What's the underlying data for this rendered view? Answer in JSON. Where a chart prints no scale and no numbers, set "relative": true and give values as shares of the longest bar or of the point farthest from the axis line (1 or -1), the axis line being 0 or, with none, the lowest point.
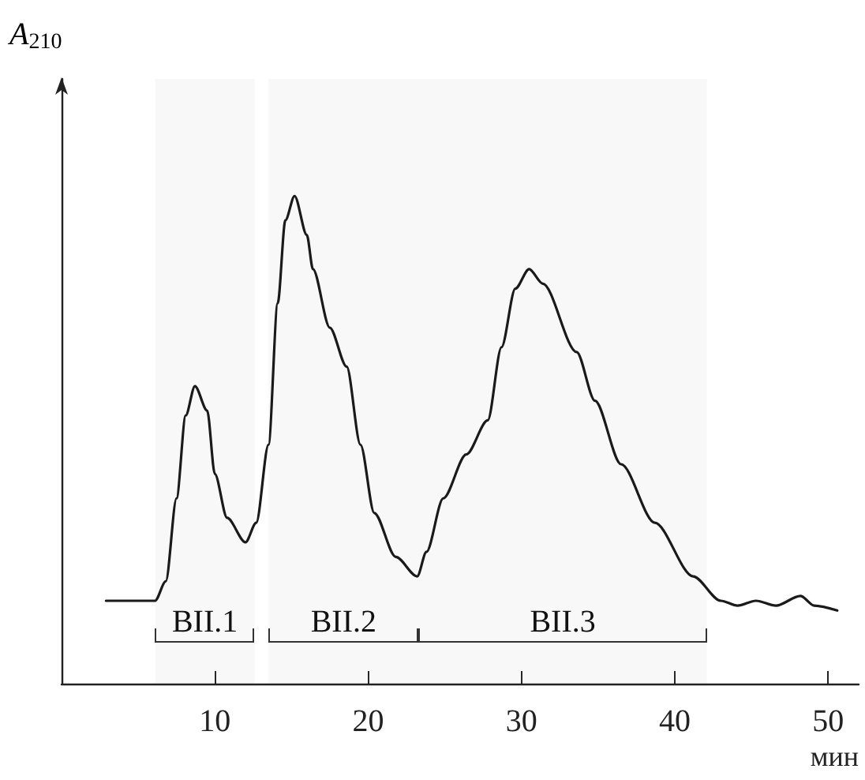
{
  "chart_data": {
    "type": "line",
    "relative": true,
    "ylabel": "A$_{210}$",
    "xlabel": "мин",
    "xlim": [
      0,
      52
    ],
    "xticks": [
      10,
      20,
      30,
      40,
      50
    ],
    "grid": false,
    "marker": "none",
    "line_style": "solid",
    "x": [
      2.9,
      6.1,
      6.8,
      7.5,
      8.1,
      8.7,
      9.5,
      10.0,
      10.8,
      12.0,
      12.7,
      13.5,
      14.1,
      14.6,
      15.2,
      16.0,
      16.4,
      17.5,
      18.6,
      19.5,
      20.4,
      21.8,
      23.2,
      23.8,
      24.9,
      26.4,
      27.8,
      28.7,
      29.6,
      30.5,
      31.4,
      33.6,
      34.8,
      36.5,
      38.7,
      41.2,
      43.0,
      44.1,
      45.3,
      46.6,
      48.2,
      49.1,
      50.6
    ],
    "series": [
      {
        "color": "#1a1a1a",
        "values": [
          0.17,
          0.17,
          0.21,
          0.38,
          0.55,
          0.61,
          0.56,
          0.43,
          0.34,
          0.29,
          0.33,
          0.49,
          0.78,
          0.95,
          1.0,
          0.92,
          0.85,
          0.73,
          0.65,
          0.49,
          0.35,
          0.26,
          0.22,
          0.27,
          0.38,
          0.47,
          0.54,
          0.69,
          0.81,
          0.85,
          0.82,
          0.68,
          0.58,
          0.45,
          0.33,
          0.22,
          0.17,
          0.16,
          0.17,
          0.16,
          0.18,
          0.16,
          0.15
        ]
      }
    ],
    "bands": [
      {
        "axis": "x",
        "from": 6.1,
        "to": 12.6,
        "label": "ВII.1"
      },
      {
        "axis": "x",
        "from": 13.5,
        "to": 23.3,
        "label": "ВII.2"
      },
      {
        "axis": "x",
        "from": 23.3,
        "to": 42.1,
        "label": "ВII.3"
      }
    ]
  }
}
